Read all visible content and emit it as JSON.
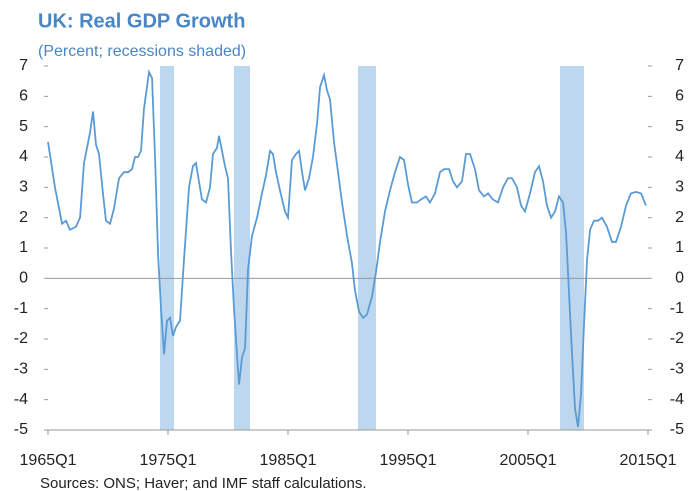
{
  "chart_data": {
    "type": "line",
    "title": "UK: Real GDP Growth",
    "subtitle": "(Percent; recessions shaded)",
    "source": "Sources: ONS; Haver; and IMF staff calculations.",
    "x": [
      1965.0,
      1965.58,
      1966.17,
      1966.5,
      1966.83,
      1967.33,
      1967.67,
      1968.0,
      1968.5,
      1968.75,
      1969.0,
      1969.25,
      1969.58,
      1969.83,
      1970.17,
      1970.5,
      1970.92,
      1971.33,
      1971.67,
      1972.0,
      1972.25,
      1972.5,
      1972.75,
      1973.0,
      1973.42,
      1973.67,
      1973.92,
      1974.17,
      1974.42,
      1974.67,
      1974.92,
      1975.17,
      1975.42,
      1975.67,
      1976.0,
      1976.33,
      1976.75,
      1977.08,
      1977.33,
      1977.58,
      1977.83,
      1978.17,
      1978.5,
      1978.75,
      1979.08,
      1979.25,
      1979.5,
      1979.75,
      1980.0,
      1980.25,
      1980.5,
      1980.75,
      1980.92,
      1981.17,
      1981.42,
      1981.67,
      1982.0,
      1982.42,
      1982.83,
      1983.17,
      1983.5,
      1983.75,
      1984.0,
      1984.33,
      1984.75,
      1985.0,
      1985.33,
      1985.67,
      1985.92,
      1986.17,
      1986.42,
      1986.75,
      1987.08,
      1987.42,
      1987.67,
      1988.0,
      1988.25,
      1988.5,
      1988.83,
      1989.17,
      1989.5,
      1989.92,
      1990.33,
      1990.58,
      1990.92,
      1991.25,
      1991.58,
      1992.0,
      1992.33,
      1992.67,
      1993.08,
      1993.5,
      1993.92,
      1994.33,
      1994.67,
      1995.0,
      1995.33,
      1995.75,
      1996.08,
      1996.5,
      1996.83,
      1997.25,
      1997.67,
      1998.0,
      1998.42,
      1998.75,
      1999.08,
      1999.5,
      1999.83,
      2000.17,
      2000.58,
      2000.92,
      2001.33,
      2001.67,
      2002.08,
      2002.5,
      2002.92,
      2003.33,
      2003.67,
      2004.08,
      2004.42,
      2004.75,
      2005.17,
      2005.58,
      2005.92,
      2006.25,
      2006.58,
      2006.92,
      2007.25,
      2007.58,
      2007.92,
      2008.17,
      2008.42,
      2008.67,
      2008.92,
      2009.17,
      2009.42,
      2009.67,
      2009.92,
      2010.17,
      2010.5,
      2010.83,
      2011.17,
      2011.58,
      2012.0,
      2012.33,
      2012.75,
      2013.17,
      2013.58,
      2014.0,
      2014.42,
      2014.83
    ],
    "series": [
      {
        "color": "#5b9bd5",
        "values": [
          4.5,
          3.0,
          1.8,
          1.9,
          1.6,
          1.7,
          2.0,
          3.8,
          4.8,
          5.5,
          4.4,
          4.1,
          2.8,
          1.9,
          1.8,
          2.3,
          3.3,
          3.5,
          3.5,
          3.6,
          4.0,
          4.0,
          4.2,
          5.6,
          6.8,
          6.6,
          4.0,
          0.8,
          -1.0,
          -2.5,
          -1.4,
          -1.3,
          -1.9,
          -1.6,
          -1.4,
          0.6,
          3.0,
          3.7,
          3.8,
          3.2,
          2.6,
          2.5,
          3.0,
          4.1,
          4.3,
          4.7,
          4.2,
          3.7,
          3.3,
          0.9,
          -1.0,
          -2.5,
          -3.5,
          -2.6,
          -2.3,
          0.3,
          1.4,
          2.0,
          2.8,
          3.4,
          4.2,
          4.1,
          3.5,
          2.9,
          2.2,
          2.0,
          3.9,
          4.1,
          4.2,
          3.5,
          2.9,
          3.3,
          4.0,
          5.1,
          6.3,
          6.7,
          6.2,
          5.9,
          4.5,
          3.5,
          2.5,
          1.4,
          0.5,
          -0.4,
          -1.1,
          -1.3,
          -1.2,
          -0.6,
          0.2,
          1.2,
          2.2,
          2.9,
          3.5,
          4.0,
          3.9,
          3.1,
          2.5,
          2.5,
          2.6,
          2.7,
          2.5,
          2.8,
          3.5,
          3.6,
          3.6,
          3.2,
          3.0,
          3.2,
          4.1,
          4.1,
          3.6,
          2.9,
          2.7,
          2.8,
          2.6,
          2.5,
          3.0,
          3.3,
          3.3,
          3.0,
          2.4,
          2.2,
          2.8,
          3.5,
          3.7,
          3.2,
          2.4,
          2.0,
          2.2,
          2.7,
          2.5,
          1.5,
          -0.5,
          -2.5,
          -4.3,
          -4.9,
          -3.8,
          -1.5,
          0.6,
          1.6,
          1.9,
          1.9,
          2.0,
          1.7,
          1.2,
          1.2,
          1.7,
          2.4,
          2.8,
          2.85,
          2.8,
          2.4
        ]
      }
    ],
    "recessions": [
      [
        1974.33,
        1975.5
      ],
      [
        1980.5,
        1981.83
      ],
      [
        1990.83,
        1992.33
      ],
      [
        2007.67,
        2009.67
      ]
    ],
    "recession_color": "#bdd7ee",
    "xlim": [
      1965,
      2015
    ],
    "xticks": [
      {
        "value": 1965,
        "label": "1965Q1"
      },
      {
        "value": 1975,
        "label": "1975Q1"
      },
      {
        "value": 1985,
        "label": "1985Q1"
      },
      {
        "value": 1995,
        "label": "1995Q1"
      },
      {
        "value": 2005,
        "label": "2005Q1"
      },
      {
        "value": 2015,
        "label": "2015Q1"
      }
    ],
    "ylim": [
      -5,
      7
    ],
    "yticks": [
      7,
      6,
      5,
      4,
      3,
      2,
      1,
      0,
      -1,
      -2,
      -3,
      -4,
      -5
    ],
    "y2lim": [
      -5,
      7
    ],
    "y2ticks": [
      7,
      6,
      5,
      4,
      3,
      2,
      1,
      0,
      -1,
      -2,
      -3,
      -4,
      -5
    ]
  }
}
